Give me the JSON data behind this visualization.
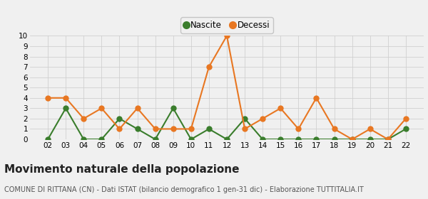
{
  "years": [
    "02",
    "03",
    "04",
    "05",
    "06",
    "07",
    "08",
    "09",
    "10",
    "11",
    "12",
    "13",
    "14",
    "15",
    "16",
    "17",
    "18",
    "19",
    "20",
    "21",
    "22"
  ],
  "nascite": [
    0,
    3,
    0,
    0,
    2,
    1,
    0,
    3,
    0,
    1,
    0,
    2,
    0,
    0,
    0,
    0,
    0,
    0,
    0,
    0,
    1
  ],
  "decessi": [
    4,
    4,
    2,
    3,
    1,
    3,
    1,
    1,
    1,
    7,
    10,
    1,
    2,
    3,
    1,
    4,
    1,
    0,
    1,
    0,
    2
  ],
  "nascite_color": "#3a7d2c",
  "decessi_color": "#e87722",
  "bg_color": "#f0f0f0",
  "grid_color": "#d0d0d0",
  "ylim": [
    0,
    10
  ],
  "yticks": [
    0,
    1,
    2,
    3,
    4,
    5,
    6,
    7,
    8,
    9,
    10
  ],
  "title": "Movimento naturale della popolazione",
  "subtitle": "COMUNE DI RITTANA (CN) - Dati ISTAT (bilancio demografico 1 gen-31 dic) - Elaborazione TUTTITALIA.IT",
  "legend_nascite": "Nascite",
  "legend_decessi": "Decessi",
  "title_fontsize": 11,
  "subtitle_fontsize": 7,
  "marker_size": 5,
  "line_width": 1.5
}
